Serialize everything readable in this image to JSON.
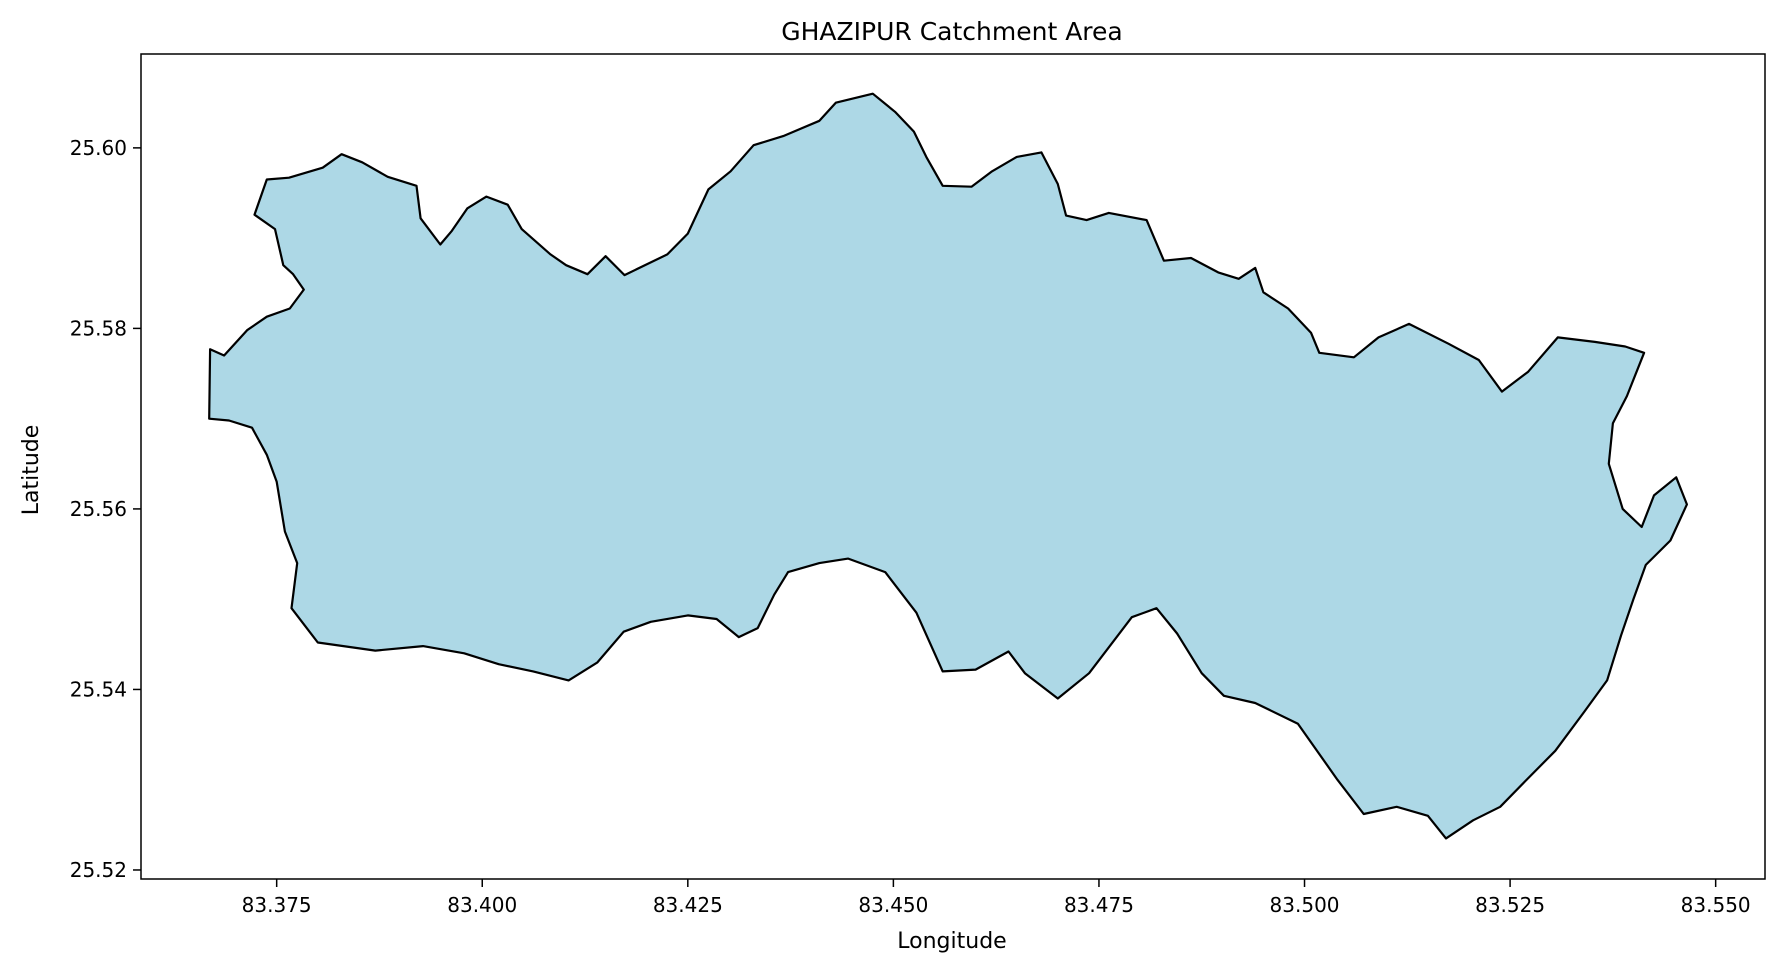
{
  "chart_data": {
    "type": "map",
    "title": "GHAZIPUR Catchment Area",
    "xlabel": "Longitude",
    "ylabel": "Latitude",
    "xlim": [
      83.3585,
      83.556
    ],
    "ylim": [
      25.519,
      25.6104
    ],
    "xticks": [
      "83.375",
      "83.400",
      "83.425",
      "83.450",
      "83.475",
      "83.500",
      "83.525",
      "83.550"
    ],
    "yticks": [
      "25.52",
      "25.54",
      "25.56",
      "25.58",
      "25.60"
    ],
    "grid": false,
    "fill_color": "#add8e6",
    "edge_color": "#000000",
    "region": [
      [
        83.3669,
        25.5777
      ],
      [
        83.3686,
        25.577
      ],
      [
        83.3714,
        25.5798
      ],
      [
        83.3738,
        25.5813
      ],
      [
        83.3766,
        25.5822
      ],
      [
        83.3783,
        25.5843
      ],
      [
        83.377,
        25.586
      ],
      [
        83.3758,
        25.587
      ],
      [
        83.3748,
        25.591
      ],
      [
        83.3723,
        25.5926
      ],
      [
        83.3738,
        25.5965
      ],
      [
        83.3765,
        25.5967
      ],
      [
        83.3806,
        25.5978
      ],
      [
        83.3829,
        25.5993
      ],
      [
        83.3854,
        25.5984
      ],
      [
        83.3885,
        25.5968
      ],
      [
        83.392,
        25.5958
      ],
      [
        83.3925,
        25.5922
      ],
      [
        83.3949,
        25.5893
      ],
      [
        83.3963,
        25.5908
      ],
      [
        83.3982,
        25.5933
      ],
      [
        83.4005,
        25.5946
      ],
      [
        83.4031,
        25.5937
      ],
      [
        83.4048,
        25.591
      ],
      [
        83.4083,
        25.5882
      ],
      [
        83.4102,
        25.587
      ],
      [
        83.4128,
        25.586
      ],
      [
        83.415,
        25.588
      ],
      [
        83.4173,
        25.5859
      ],
      [
        83.4225,
        25.5882
      ],
      [
        83.425,
        25.5905
      ],
      [
        83.4275,
        25.5954
      ],
      [
        83.4302,
        25.5974
      ],
      [
        83.433,
        25.6003
      ],
      [
        83.4366,
        25.6013
      ],
      [
        83.441,
        25.603
      ],
      [
        83.443,
        25.605
      ],
      [
        83.4475,
        25.606
      ],
      [
        83.4502,
        25.604
      ],
      [
        83.4525,
        25.6018
      ],
      [
        83.454,
        25.599
      ],
      [
        83.456,
        25.5958
      ],
      [
        83.4595,
        25.5957
      ],
      [
        83.462,
        25.5974
      ],
      [
        83.465,
        25.599
      ],
      [
        83.468,
        25.5995
      ],
      [
        83.47,
        25.596
      ],
      [
        83.471,
        25.5925
      ],
      [
        83.4735,
        25.592
      ],
      [
        83.4762,
        25.5928
      ],
      [
        83.4808,
        25.592
      ],
      [
        83.4829,
        25.5875
      ],
      [
        83.4862,
        25.5878
      ],
      [
        83.4895,
        25.5862
      ],
      [
        83.492,
        25.5855
      ],
      [
        83.494,
        25.5867
      ],
      [
        83.495,
        25.584
      ],
      [
        83.498,
        25.5822
      ],
      [
        83.5008,
        25.5795
      ],
      [
        83.5018,
        25.5773
      ],
      [
        83.506,
        25.5768
      ],
      [
        83.509,
        25.579
      ],
      [
        83.5127,
        25.5805
      ],
      [
        83.5175,
        25.5783
      ],
      [
        83.5212,
        25.5765
      ],
      [
        83.524,
        25.573
      ],
      [
        83.5272,
        25.5752
      ],
      [
        83.5308,
        25.579
      ],
      [
        83.5353,
        25.5785
      ],
      [
        83.539,
        25.578
      ],
      [
        83.5413,
        25.5773
      ],
      [
        83.5392,
        25.5725
      ],
      [
        83.5375,
        25.5695
      ],
      [
        83.537,
        25.565
      ],
      [
        83.5387,
        25.56
      ],
      [
        83.541,
        25.558
      ],
      [
        83.5425,
        25.5615
      ],
      [
        83.5452,
        25.5635
      ],
      [
        83.5465,
        25.5605
      ],
      [
        83.5445,
        25.5565
      ],
      [
        83.5415,
        25.5538
      ],
      [
        83.54,
        25.55
      ],
      [
        83.5385,
        25.546
      ],
      [
        83.5368,
        25.541
      ],
      [
        83.534,
        25.5375
      ],
      [
        83.5305,
        25.5332
      ],
      [
        83.5268,
        25.5298
      ],
      [
        83.5238,
        25.527
      ],
      [
        83.5205,
        25.5255
      ],
      [
        83.5172,
        25.5235
      ],
      [
        83.515,
        25.526
      ],
      [
        83.5112,
        25.527
      ],
      [
        83.5072,
        25.5262
      ],
      [
        83.504,
        25.53
      ],
      [
        83.4992,
        25.5362
      ],
      [
        83.494,
        25.5385
      ],
      [
        83.4902,
        25.5393
      ],
      [
        83.4875,
        25.5418
      ],
      [
        83.4845,
        25.5462
      ],
      [
        83.482,
        25.549
      ],
      [
        83.479,
        25.548
      ],
      [
        83.4738,
        25.5418
      ],
      [
        83.47,
        25.539
      ],
      [
        83.466,
        25.5418
      ],
      [
        83.464,
        25.5442
      ],
      [
        83.46,
        25.5422
      ],
      [
        83.456,
        25.542
      ],
      [
        83.4528,
        25.5485
      ],
      [
        83.449,
        25.553
      ],
      [
        83.4445,
        25.5545
      ],
      [
        83.441,
        25.554
      ],
      [
        83.4372,
        25.553
      ],
      [
        83.4355,
        25.5505
      ],
      [
        83.4335,
        25.5468
      ],
      [
        83.4312,
        25.5458
      ],
      [
        83.4285,
        25.5478
      ],
      [
        83.425,
        25.5482
      ],
      [
        83.4205,
        25.5475
      ],
      [
        83.4172,
        25.5464
      ],
      [
        83.414,
        25.543
      ],
      [
        83.4105,
        25.541
      ],
      [
        83.4062,
        25.542
      ],
      [
        83.402,
        25.5428
      ],
      [
        83.3978,
        25.544
      ],
      [
        83.3928,
        25.5448
      ],
      [
        83.387,
        25.5443
      ],
      [
        83.38,
        25.5452
      ],
      [
        83.3768,
        25.549
      ],
      [
        83.3775,
        25.554
      ],
      [
        83.376,
        25.5575
      ],
      [
        83.375,
        25.563
      ],
      [
        83.3738,
        25.566
      ],
      [
        83.372,
        25.569
      ],
      [
        83.3692,
        25.5698
      ],
      [
        83.3668,
        25.57
      ]
    ]
  }
}
